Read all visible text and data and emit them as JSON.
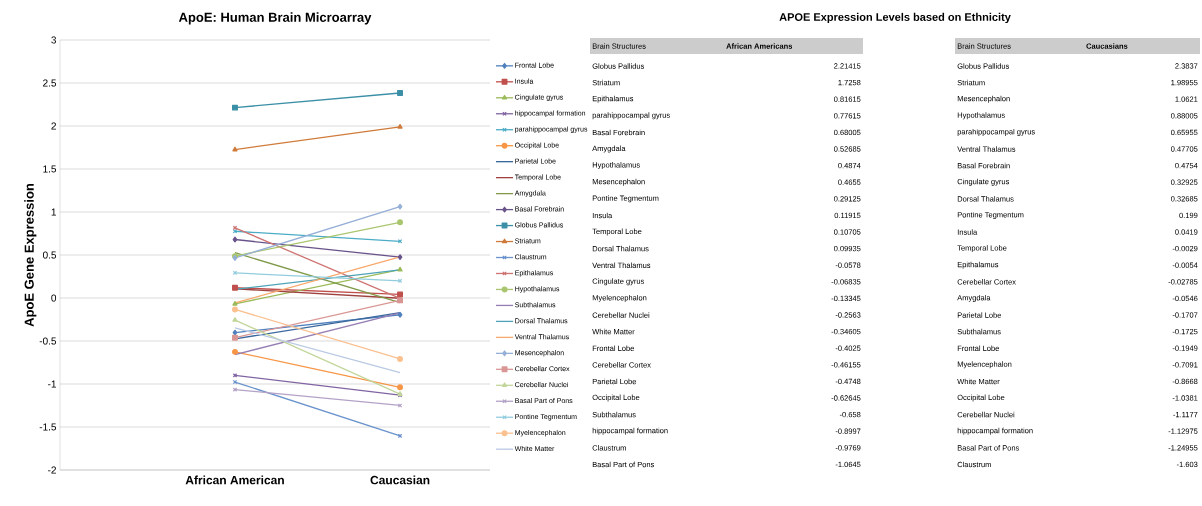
{
  "chart_data": [
    {
      "type": "line",
      "title": "ApoE: Human Brain Microarray",
      "ylabel": "ApoE Gene Expression",
      "categories": [
        "African American",
        "Caucasian"
      ],
      "ylim": [
        -2,
        3
      ],
      "yticks": [
        -2,
        -1.5,
        -1,
        -0.5,
        0,
        0.5,
        1,
        1.5,
        2,
        2.5,
        3
      ],
      "grid": "y",
      "legend": "right",
      "line_style": "solid",
      "series": [
        {
          "name": "Frontal Lobe",
          "color": "#4f81bd",
          "marker": "diamond",
          "values": [
            -0.4025,
            -0.1949
          ]
        },
        {
          "name": "Insula",
          "color": "#c0504d",
          "marker": "square",
          "values": [
            0.11915,
            0.0419
          ]
        },
        {
          "name": "Cingulate gyrus",
          "color": "#9bbb59",
          "marker": "triangle",
          "values": [
            -0.06835,
            0.32925
          ]
        },
        {
          "name": "hippocampal formation",
          "color": "#8064a2",
          "marker": "cross",
          "values": [
            -0.8997,
            -1.12975
          ]
        },
        {
          "name": "parahippocampal gyrus",
          "color": "#4bacc6",
          "marker": "cross",
          "values": [
            0.77615,
            0.65955
          ]
        },
        {
          "name": "Occipital Lobe",
          "color": "#f79646",
          "marker": "circle",
          "values": [
            -0.62645,
            -1.0381
          ]
        },
        {
          "name": "Parietal Lobe",
          "color": "#3a679d",
          "marker": "none",
          "values": [
            -0.4748,
            -0.1707
          ]
        },
        {
          "name": "Temporal Lobe",
          "color": "#9e413e",
          "marker": "none",
          "values": [
            0.10705,
            -0.0029
          ]
        },
        {
          "name": "Amygdala",
          "color": "#7e9a49",
          "marker": "none",
          "values": [
            0.52685,
            -0.0546
          ]
        },
        {
          "name": "Basal Forebrain",
          "color": "#69538a",
          "marker": "diamond",
          "values": [
            0.68005,
            0.4754
          ]
        },
        {
          "name": "Globus Pallidus",
          "color": "#3b8fa6",
          "marker": "square",
          "values": [
            2.21415,
            2.3837
          ]
        },
        {
          "name": "Striatum",
          "color": "#d07a3a",
          "marker": "triangle",
          "values": [
            1.7258,
            1.98955
          ]
        },
        {
          "name": "Claustrum",
          "color": "#6a93cc",
          "marker": "cross",
          "values": [
            -0.9769,
            -1.603
          ]
        },
        {
          "name": "Epithalamus",
          "color": "#ce7371",
          "marker": "cross",
          "values": [
            0.81615,
            -0.0054
          ]
        },
        {
          "name": "Hypothalamus",
          "color": "#a9c66e",
          "marker": "circle",
          "values": [
            0.4874,
            0.88005
          ]
        },
        {
          "name": "Subthalamus",
          "color": "#957eb4",
          "marker": "none",
          "values": [
            -0.658,
            -0.1725
          ]
        },
        {
          "name": "Dorsal Thalamus",
          "color": "#4fa3b8",
          "marker": "none",
          "values": [
            0.09935,
            0.32685
          ]
        },
        {
          "name": "Ventral Thalamus",
          "color": "#f8a86b",
          "marker": "none",
          "values": [
            -0.0578,
            0.47705
          ]
        },
        {
          "name": "Mesencephalon",
          "color": "#95afd6",
          "marker": "diamond",
          "values": [
            0.4655,
            1.0621
          ]
        },
        {
          "name": "Cerebellar Cortex",
          "color": "#d99694",
          "marker": "square",
          "values": [
            -0.46155,
            -0.02785
          ]
        },
        {
          "name": "Cerebellar Nuclei",
          "color": "#c3d69b",
          "marker": "triangle",
          "values": [
            -0.2563,
            -1.1177
          ]
        },
        {
          "name": "Basal Part of Pons",
          "color": "#b3a2c7",
          "marker": "cross",
          "values": [
            -1.0645,
            -1.24955
          ]
        },
        {
          "name": "Pontine Tegmentum",
          "color": "#93cddd",
          "marker": "cross",
          "values": [
            0.29125,
            0.199
          ]
        },
        {
          "name": "Myelencephalon",
          "color": "#fac090",
          "marker": "circle",
          "values": [
            -0.13345,
            -0.7091
          ]
        },
        {
          "name": "White Matter",
          "color": "#b9c9e3",
          "marker": "none",
          "values": [
            -0.34605,
            -0.8668
          ]
        }
      ]
    },
    {
      "type": "other",
      "title": "APOE Expression Levels based on Ethnicity",
      "xlabel": "Brain Structures",
      "ylabel": "African Americans",
      "categories": [
        "Globus Pallidus",
        "Striatum",
        "Epithalamus",
        "parahippocampal gyrus",
        "Basal Forebrain",
        "Amygdala",
        "Hypothalamus",
        "Mesencephalon",
        "Pontine Tegmentum",
        "Insula",
        "Temporal Lobe",
        "Dorsal Thalamus",
        "Ventral Thalamus",
        "Cingulate gyrus",
        "Myelencephalon",
        "Cerebellar Nuclei",
        "White Matter",
        "Frontal Lobe",
        "Cerebellar Cortex",
        "Parietal Lobe",
        "Occipital Lobe",
        "Subthalamus",
        "hippocampal formation",
        "Claustrum",
        "Basal Part of Pons"
      ],
      "value_labels": [
        "2.21415",
        "1.7258",
        "0.81615",
        "0.77615",
        "0.68005",
        "0.52685",
        "0.4874",
        "0.4655",
        "0.29125",
        "0.11915",
        "0.10705",
        "0.09935",
        "-0.0578",
        "-0.06835",
        "-0.13345",
        "-0.2563",
        "-0.34605",
        "-0.4025",
        "-0.46155",
        "-0.4748",
        "-0.62645",
        "-0.658",
        "-0.8997",
        "-0.9769",
        "-1.0645"
      ]
    },
    {
      "type": "other",
      "xlabel": "Brain Structures",
      "ylabel": "Caucasians",
      "categories": [
        "Globus Pallidus",
        "Striatum",
        "Mesencephalon",
        "Hypothalamus",
        "parahippocampal gyrus",
        "Ventral Thalamus",
        "Basal Forebrain",
        "Cingulate gyrus",
        "Dorsal Thalamus",
        "Pontine Tegmentum",
        "Insula",
        "Temporal Lobe",
        "Epithalamus",
        "Cerebellar Cortex",
        "Amygdala",
        "Parietal Lobe",
        "Subthalamus",
        "Frontal Lobe",
        "Myelencephalon",
        "White Matter",
        "Occipital Lobe",
        "Cerebellar Nuclei",
        "hippocampal formation",
        "Basal Part of Pons",
        "Claustrum"
      ],
      "value_labels": [
        "2.3837",
        "1.98955",
        "1.0621",
        "0.88005",
        "0.65955",
        "0.47705",
        "0.4754",
        "0.32925",
        "0.32685",
        "0.199",
        "0.0419",
        "-0.0029",
        "-0.0054",
        "-0.02785",
        "-0.0546",
        "-0.1707",
        "-0.1725",
        "-0.1949",
        "-0.7091",
        "-0.8668",
        "-1.0381",
        "-1.1177",
        "-1.12975",
        "-1.24955",
        "-1.603"
      ]
    }
  ]
}
